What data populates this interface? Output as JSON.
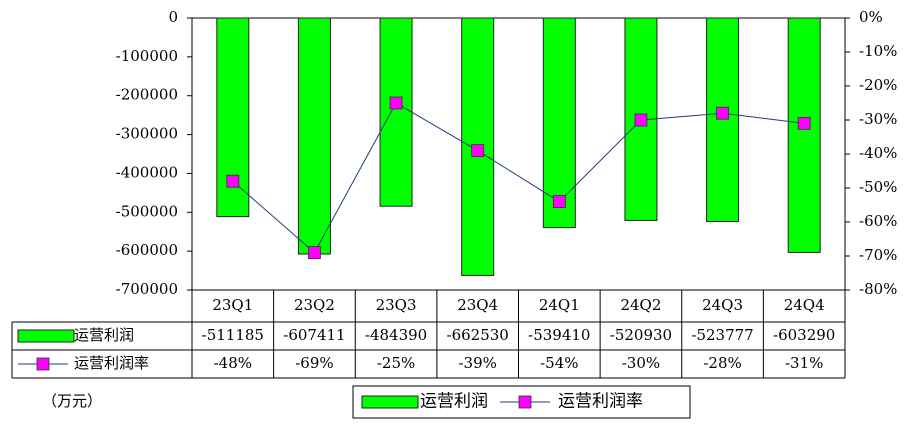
{
  "chart_data": {
    "type": "bar_line",
    "categories": [
      "23Q1",
      "23Q2",
      "23Q3",
      "23Q4",
      "24Q1",
      "24Q2",
      "24Q3",
      "24Q4"
    ],
    "series": [
      {
        "name": "运营利润",
        "color": "#00ff00",
        "values": [
          -511185,
          -607411,
          -484390,
          -662530,
          -539410,
          -520930,
          -523777,
          -603290
        ]
      },
      {
        "name": "运营利润率",
        "color": "#ff00ff",
        "axis": "y2",
        "values": [
          -48,
          -69,
          -25,
          -39,
          -54,
          -30,
          -28,
          -31
        ],
        "value_labels": [
          "-48%",
          "-69%",
          "-25%",
          "-39%",
          "-54%",
          "-30%",
          "-28%",
          "-31%"
        ]
      }
    ],
    "ylim": [
      -700000,
      0
    ],
    "yticks": [
      0,
      -100000,
      -200000,
      -300000,
      -400000,
      -500000,
      -600000,
      -700000
    ],
    "y2lim": [
      -80,
      0
    ],
    "y2ticks": [
      {
        "value": 0,
        "label": "0%"
      },
      {
        "value": -10,
        "label": "-10%"
      },
      {
        "value": -20,
        "label": "-20%"
      },
      {
        "value": -30,
        "label": "-30%"
      },
      {
        "value": -40,
        "label": "-40%"
      },
      {
        "value": -50,
        "label": "-50%"
      },
      {
        "value": -60,
        "label": "-60%"
      },
      {
        "value": -70,
        "label": "-70%"
      },
      {
        "value": -80,
        "label": "-80%"
      }
    ],
    "unit_label": "（万元）",
    "legend": "bottom"
  }
}
